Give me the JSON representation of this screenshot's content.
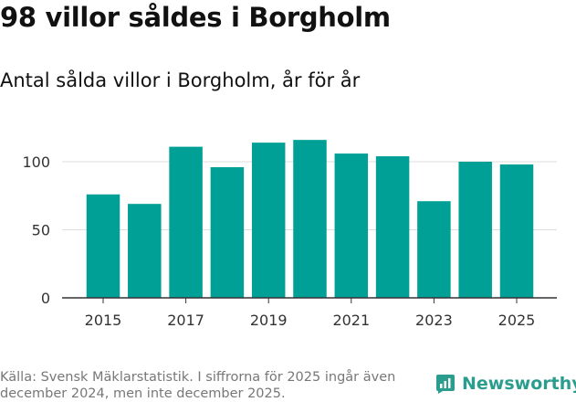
{
  "title": "98 villor såldes i Borgholm",
  "subtitle": "Antal sålda villor i Borgholm, år för år",
  "source": "Källa: Svensk Mäklarstatistik. I siffrorna för 2025 ingår även december 2024, men inte december 2025.",
  "brand": {
    "name": "Newsworthy",
    "icon": "newsworthy-logo-icon",
    "color": "#2a9d8f"
  },
  "colors": {
    "bar": "#00a097",
    "grid": "#dddddd",
    "axis": "#333333"
  },
  "chart_data": {
    "type": "bar",
    "title": "98 villor såldes i Borgholm",
    "subtitle": "Antal sålda villor i Borgholm, år för år",
    "xlabel": "",
    "ylabel": "",
    "categories": [
      "2015",
      "2016",
      "2017",
      "2018",
      "2019",
      "2020",
      "2021",
      "2022",
      "2023",
      "2024",
      "2025"
    ],
    "values": [
      76,
      69,
      111,
      96,
      114,
      116,
      106,
      104,
      71,
      100,
      98
    ],
    "ylim": [
      0,
      120
    ],
    "yticks": [
      0,
      50,
      100
    ],
    "xticks": [
      "2015",
      "2017",
      "2019",
      "2021",
      "2023",
      "2025"
    ],
    "grid": true,
    "legend": "none"
  }
}
